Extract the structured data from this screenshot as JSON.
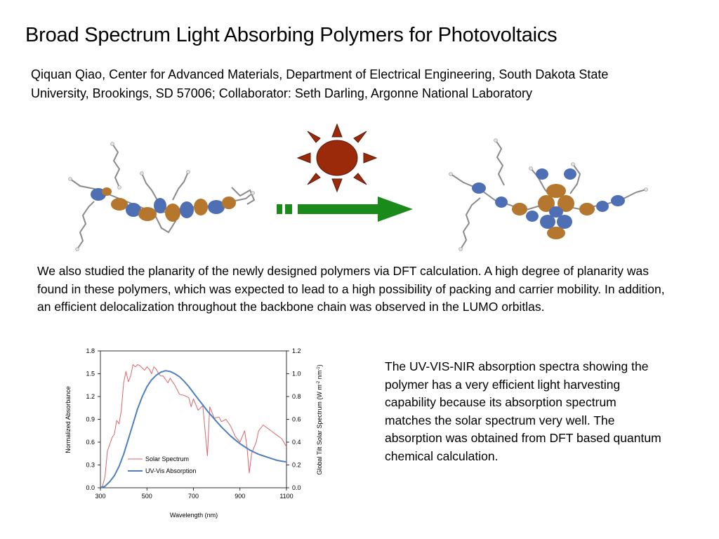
{
  "header": {
    "title": "Broad Spectrum Light Absorbing Polymers for Photovoltaics",
    "authors": "Qiquan Qiao, Center for Advanced Materials, Department of Electrical Engineering, South Dakota State University, Brookings, SD 57006; Collaborator: Seth Darling, Argonne National Laboratory"
  },
  "body": {
    "paragraph1": "We also studied the planarity of the newly designed polymers via DFT calculation.  A high degree of planarity was found in these polymers, which was expected to lead to a high possibility of packing and carrier mobility.  In addition, an efficient delocalization throughout the backbone chain was observed in the LUMO orbitlas.",
    "paragraph2": "The UV-VIS-NIR absorption spectra showing the polymer has a very efficient light harvesting capability because its absorption spectrum matches the solar spectrum very well.  The absorption was obtained from DFT based quantum chemical calculation."
  },
  "colors": {
    "sun_fill": "#9b2a0a",
    "arrow_green": "#1a8a1a",
    "orbital_orange": "#b5772e",
    "orbital_blue": "#4f6fb4",
    "solar_line": "#d9666b",
    "absorption_line": "#4f7fbf"
  },
  "icons": [
    "sun-icon",
    "right-arrow-icon"
  ],
  "chart_data": {
    "type": "line",
    "xlabel": "Wavelength (nm)",
    "ylabel_left": "Normalized Absorbance",
    "ylabel_right": "Global Tilt Solar Spectrum (W m-2 nm-1)",
    "ylabel_right_parts": [
      "Global Tilt Solar Spectrum (W m",
      "-2",
      " nm",
      "-1",
      ")"
    ],
    "xlim": [
      300,
      1100
    ],
    "ylim_left": [
      0,
      1.8
    ],
    "ylim_right": [
      0,
      1.2
    ],
    "x_ticks": [
      "300",
      "500",
      "700",
      "900",
      "1100"
    ],
    "y_left_ticks": [
      "0.0",
      "0.3",
      "0.6",
      "0.9",
      "1.2",
      "1.5",
      "1.8"
    ],
    "y_right_ticks": [
      "0.0",
      "0.2",
      "0.4",
      "0.6",
      "0.8",
      "1.0",
      "1.2"
    ],
    "legend": "inside lower-left",
    "series": [
      {
        "name": "Solar Spectrum",
        "axis": "right",
        "x": [
          300,
          310,
          320,
          330,
          340,
          350,
          360,
          370,
          380,
          390,
          400,
          410,
          420,
          430,
          440,
          450,
          460,
          470,
          480,
          490,
          500,
          510,
          520,
          530,
          540,
          550,
          560,
          570,
          580,
          590,
          600,
          620,
          640,
          660,
          680,
          690,
          700,
          720,
          740,
          760,
          770,
          790,
          810,
          820,
          840,
          860,
          880,
          900,
          920,
          930,
          940,
          950,
          960,
          970,
          980,
          1000,
          1020,
          1040,
          1060,
          1080,
          1100
        ],
        "y": [
          0.0,
          0.02,
          0.1,
          0.32,
          0.38,
          0.44,
          0.47,
          0.59,
          0.56,
          0.68,
          0.92,
          1.02,
          0.93,
          0.98,
          1.08,
          1.06,
          1.08,
          1.07,
          1.05,
          1.03,
          1.06,
          1.04,
          1.0,
          1.06,
          1.04,
          1.0,
          0.98,
          0.98,
          0.95,
          0.92,
          0.96,
          0.9,
          0.82,
          0.81,
          0.79,
          0.71,
          0.78,
          0.68,
          0.72,
          0.28,
          0.71,
          0.61,
          0.62,
          0.58,
          0.6,
          0.54,
          0.45,
          0.4,
          0.5,
          0.36,
          0.13,
          0.3,
          0.35,
          0.4,
          0.5,
          0.55,
          0.52,
          0.49,
          0.46,
          0.43,
          0.36
        ]
      },
      {
        "name": "UV-Vis Absorption",
        "axis": "left",
        "x": [
          300,
          320,
          340,
          360,
          380,
          400,
          420,
          440,
          460,
          480,
          500,
          520,
          540,
          560,
          580,
          600,
          620,
          640,
          660,
          680,
          700,
          720,
          740,
          760,
          780,
          800,
          820,
          840,
          860,
          880,
          900,
          920,
          940,
          960,
          980,
          1000,
          1020,
          1040,
          1060,
          1080,
          1100
        ],
        "y": [
          0.0,
          0.02,
          0.08,
          0.16,
          0.28,
          0.44,
          0.64,
          0.84,
          1.04,
          1.2,
          1.33,
          1.42,
          1.48,
          1.52,
          1.54,
          1.53,
          1.5,
          1.46,
          1.4,
          1.33,
          1.25,
          1.17,
          1.09,
          1.01,
          0.94,
          0.87,
          0.8,
          0.74,
          0.68,
          0.63,
          0.58,
          0.54,
          0.5,
          0.47,
          0.44,
          0.42,
          0.4,
          0.38,
          0.36,
          0.35,
          0.34
        ]
      }
    ]
  }
}
